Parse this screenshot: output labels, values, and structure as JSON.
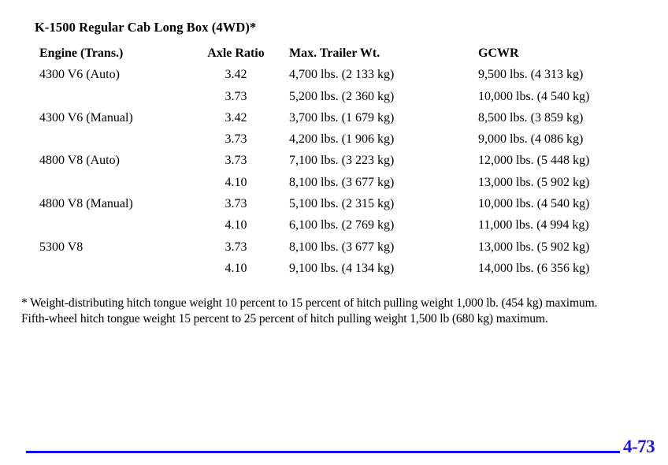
{
  "page": {
    "title": "K-1500 Regular Cab Long Box (4WD)*",
    "footnote_line1": "* Weight-distributing hitch tongue weight 10 percent to 15 percent of hitch pulling weight 1,000 lb. (454 kg) maximum.",
    "footnote_line2": "Fifth-wheel hitch tongue weight 15 percent to 25 percent of hitch pulling weight 1,500 lb (680 kg) maximum.",
    "page_number": "4-73"
  },
  "colors": {
    "rule_blue": "#0d00f0",
    "page_number_blue": "#2013d8",
    "text_black": "#000000"
  },
  "table": {
    "headers": [
      "Engine (Trans.)",
      "Axle Ratio",
      "Max. Trailer Wt.",
      "GCWR"
    ],
    "rows": [
      {
        "engine": "4300 V6 (Auto)",
        "axle": "3.42",
        "trailer": "4,700 lbs. (2 133 kg)",
        "gcwr": "9,500 lbs. (4 313 kg)"
      },
      {
        "engine": "",
        "axle": "3.73",
        "trailer": "5,200 lbs. (2 360 kg)",
        "gcwr": "10,000 lbs. (4 540 kg)"
      },
      {
        "engine": "4300 V6 (Manual)",
        "axle": "3.42",
        "trailer": "3,700 lbs. (1 679 kg)",
        "gcwr": "8,500 lbs. (3 859 kg)"
      },
      {
        "engine": "",
        "axle": "3.73",
        "trailer": "4,200 lbs. (1 906 kg)",
        "gcwr": "9,000 lbs. (4 086 kg)"
      },
      {
        "engine": "4800 V8 (Auto)",
        "axle": "3.73",
        "trailer": "7,100 lbs. (3 223 kg)",
        "gcwr": "12,000 lbs. (5 448 kg)"
      },
      {
        "engine": "",
        "axle": "4.10",
        "trailer": "8,100 lbs. (3 677 kg)",
        "gcwr": "13,000 lbs. (5 902 kg)"
      },
      {
        "engine": "4800 V8 (Manual)",
        "axle": "3.73",
        "trailer": "5,100 lbs. (2 315 kg)",
        "gcwr": "10,000 lbs. (4 540 kg)"
      },
      {
        "engine": "",
        "axle": "4.10",
        "trailer": "6,100 lbs. (2 769 kg)",
        "gcwr": "11,000 lbs. (4 994 kg)"
      },
      {
        "engine": "5300 V8",
        "axle": "3.73",
        "trailer": "8,100 lbs. (3 677 kg)",
        "gcwr": "13,000 lbs. (5 902 kg)"
      },
      {
        "engine": "",
        "axle": "4.10",
        "trailer": "9,100 lbs. (4 134 kg)",
        "gcwr": "14,000 lbs. (6 356 kg)"
      }
    ]
  }
}
